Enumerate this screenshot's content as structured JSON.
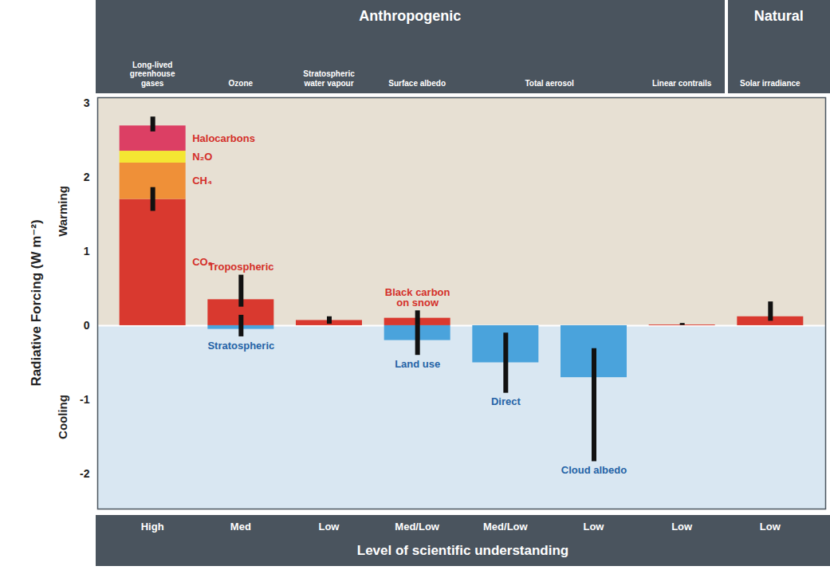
{
  "chart_data": {
    "type": "bar",
    "stacked": true,
    "ylabel": "Radiative Forcing (W m⁻²)",
    "ylim": [
      -2.47,
      3.07
    ],
    "yticks": [
      -2,
      -1,
      0,
      1,
      2,
      3
    ],
    "warming_label": "Warming",
    "cooling_label": "Cooling",
    "understanding_title": "Level of scientific understanding",
    "groups": [
      {
        "name": "Anthropogenic",
        "categories": [
          "Long-lived greenhouse gases",
          "Ozone",
          "Stratospheric water vapour",
          "Surface albedo",
          "Total aerosol",
          "Linear contrails"
        ]
      },
      {
        "name": "Natural",
        "categories": [
          "Solar irradiance"
        ]
      }
    ],
    "columns": [
      {
        "category": "Long-lived greenhouse gases",
        "understanding": "High",
        "total_error": [
          2.61,
          2.81
        ],
        "bars": [
          {
            "name": "CO₂",
            "value": 1.7,
            "color": "#d9392f",
            "error": [
              1.54,
              1.86
            ]
          },
          {
            "name": "CH₄",
            "value": 0.49,
            "color": "#ef9038"
          },
          {
            "name": "N₂O",
            "value": 0.16,
            "color": "#f4e632"
          },
          {
            "name": "Halocarbons",
            "value": 0.34,
            "color": "#dc3f64"
          }
        ]
      },
      {
        "category": "Ozone",
        "understanding": "Med",
        "bars": [
          {
            "name": "Tropospheric",
            "value": 0.35,
            "color": "#d9392f",
            "error": [
              0.25,
              0.68
            ]
          },
          {
            "name": "Stratospheric",
            "value": -0.05,
            "color": "#4aa3dc",
            "error": [
              -0.15,
              0.14
            ]
          }
        ]
      },
      {
        "category": "Stratospheric water vapour",
        "understanding": "Low",
        "bars": [
          {
            "value": 0.07,
            "color": "#d9392f",
            "error": [
              0.02,
              0.12
            ]
          }
        ]
      },
      {
        "category": "Surface albedo",
        "understanding": "Med/Low",
        "bars": [
          {
            "name": "Black carbon on snow",
            "value": 0.1,
            "color": "#d9392f",
            "error": [
              0.0,
              0.2
            ]
          },
          {
            "name": "Land use",
            "value": -0.2,
            "color": "#4aa3dc",
            "error": [
              -0.4,
              0.0
            ]
          }
        ]
      },
      {
        "category": "Total aerosol",
        "understanding": "Med/Low",
        "bars": [
          {
            "name": "Direct",
            "value": -0.5,
            "color": "#4aa3dc",
            "error": [
              -0.91,
              -0.1
            ]
          }
        ]
      },
      {
        "category": "Total aerosol",
        "understanding": "Low",
        "bars": [
          {
            "name": "Cloud albedo",
            "value": -0.7,
            "color": "#4aa3dc",
            "error": [
              -1.83,
              -0.31
            ]
          }
        ]
      },
      {
        "category": "Linear contrails",
        "understanding": "Low",
        "bars": [
          {
            "value": 0.01,
            "color": "#d9392f",
            "error": [
              0.003,
              0.03
            ]
          }
        ]
      },
      {
        "category": "Solar irradiance",
        "understanding": "Low",
        "bars": [
          {
            "value": 0.12,
            "color": "#d9392f",
            "error": [
              0.06,
              0.32
            ]
          }
        ]
      }
    ]
  }
}
